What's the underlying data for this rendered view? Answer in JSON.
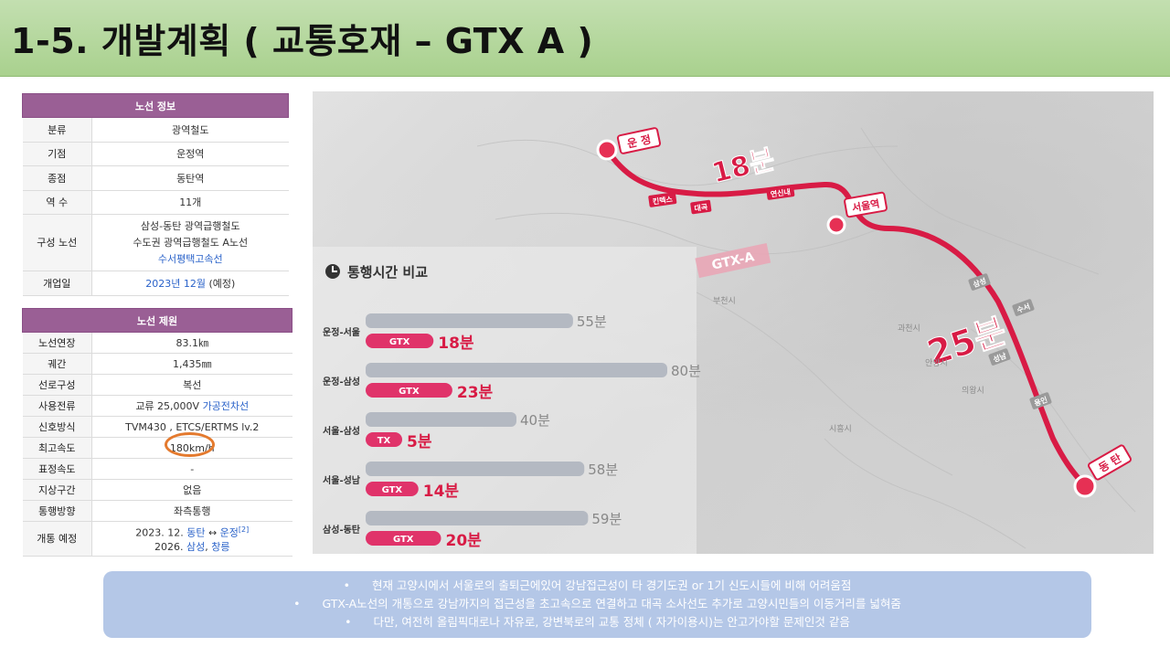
{
  "title": "1-5. 개발계획 ( 교통호재 – GTX A )",
  "route_info": {
    "header": "노선 정보",
    "rows": [
      {
        "key": "분류",
        "value": "광역철도"
      },
      {
        "key": "기점",
        "value": "운정역"
      },
      {
        "key": "종점",
        "value": "동탄역"
      },
      {
        "key": "역 수",
        "value": "11개"
      },
      {
        "key": "구성 노선",
        "value": [
          "삼성-동탄 광역급행철도",
          "수도권 광역급행철도 A노선",
          "수서평택고속선"
        ]
      },
      {
        "key": "개업일",
        "value": "2023년 12월",
        "value_suffix": " (예정)"
      }
    ]
  },
  "route_spec": {
    "header": "노선 제원",
    "rows": [
      {
        "key": "노선연장",
        "value": "83.1㎞"
      },
      {
        "key": "궤간",
        "value": "1,435㎜"
      },
      {
        "key": "선로구성",
        "value": "복선"
      },
      {
        "key": "사용전류",
        "value": "교류 25,000V ",
        "value_link": "가공전차선"
      },
      {
        "key": "신호방식",
        "value": "TVM430 , ETCS/ERTMS lv.2"
      },
      {
        "key": "최고속도",
        "value": "180km/h"
      },
      {
        "key": "표정속도",
        "value": "-"
      },
      {
        "key": "지상구간",
        "value": "없음"
      },
      {
        "key": "통행방향",
        "value": "좌측통행"
      },
      {
        "key": "개통 예정",
        "line1_prefix": "2023. 12. ",
        "line1_link1": "동탄",
        "line1_arrow": " ↔ ",
        "line1_link2": "운정",
        "line1_sup": "[2]",
        "line2_prefix": "2026. ",
        "line2_link1": "삼성",
        "line2_sep": ", ",
        "line2_link2": "창릉"
      }
    ]
  },
  "map": {
    "comparison_title": "통행시간 비교",
    "comparisons": [
      {
        "route": "운정-서울",
        "current": "55분",
        "gtx": "18분",
        "gtx_label": "GTX"
      },
      {
        "route": "운정-삼성",
        "current": "80분",
        "gtx": "23분",
        "gtx_label": "GTX"
      },
      {
        "route": "서울-삼성",
        "current": "40분",
        "gtx": "5분",
        "gtx_label": "TX"
      },
      {
        "route": "서울-성남",
        "current": "58분",
        "gtx": "14분",
        "gtx_label": "GTX"
      },
      {
        "route": "삼성-동탄",
        "current": "59분",
        "gtx": "20분",
        "gtx_label": "GTX"
      }
    ],
    "stations": {
      "start": "운 정",
      "mid": "서울역",
      "end": "동 탄"
    },
    "line_label": "GTX-A",
    "segment_times": [
      "18분",
      "25분"
    ],
    "small_station_labels": [
      "킨텍스",
      "대곡",
      "연신내",
      "삼성",
      "수서",
      "성남",
      "용인"
    ],
    "city_labels": [
      "부천시",
      "과천시",
      "의왕시",
      "안양시",
      "시흥시"
    ],
    "colors": {
      "line": "#d81b45",
      "bar_current": "#b4b9c2",
      "bar_gtx": "#e0336a",
      "time_text": "#d81b45"
    }
  },
  "summary": {
    "bullet": "•",
    "lines": [
      "현재 고양시에서 서울로의 출퇴근에있어 강남접근성이 타 경기도권 or 1기 신도시들에 비해 어려움점",
      "GTX-A노선의 개통으로 강남까지의 접근성을 초고속으로 연결하고 대곡 소사선도 추가로 고양시민들의 이동거리를 넓혀줌",
      "다만, 여전히 올림픽대로나 자유로, 강변북로의 교통 정체 ( 자가이용시)는 안고가야할 문제인것 같음"
    ]
  }
}
